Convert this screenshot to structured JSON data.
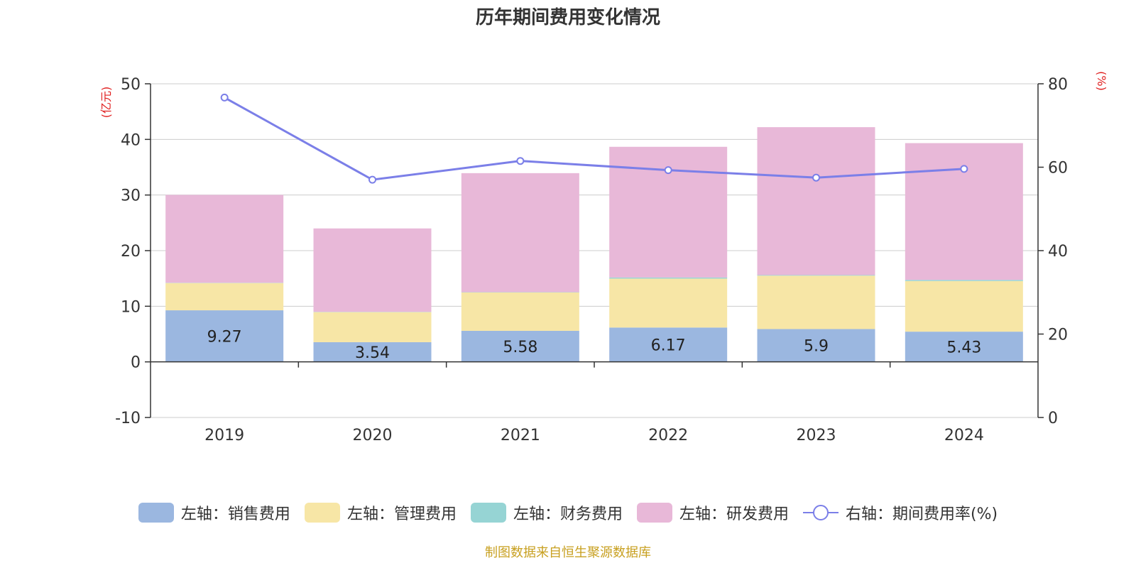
{
  "title": "历年期间费用变化情况",
  "source": "制图数据来自恒生聚源数据库",
  "chart_data": {
    "type": "bar",
    "title": "历年期间费用变化情况",
    "categories": [
      "2019",
      "2020",
      "2021",
      "2022",
      "2023",
      "2024"
    ],
    "left_axis": {
      "unit": "(亿元)",
      "ylim": [
        -10,
        50
      ],
      "ticks": [
        50,
        40,
        30,
        20,
        10,
        0,
        -10
      ]
    },
    "right_axis": {
      "unit": "(%)",
      "ylim": [
        0,
        80
      ],
      "ticks": [
        80,
        60,
        40,
        20,
        0
      ]
    },
    "series": [
      {
        "name": "左轴：销售费用",
        "axis": "left",
        "type": "bar",
        "color": "#9bb7e0",
        "values": [
          9.27,
          3.54,
          5.58,
          6.17,
          5.9,
          5.43
        ],
        "labels": [
          "9.27",
          "3.54",
          "5.58",
          "6.17",
          "5.9",
          "5.43"
        ]
      },
      {
        "name": "左轴：管理费用",
        "axis": "left",
        "type": "bar",
        "color": "#f7e6a6",
        "values": [
          4.9,
          5.4,
          6.9,
          8.8,
          9.6,
          9.1
        ]
      },
      {
        "name": "左轴：财务费用",
        "axis": "left",
        "type": "bar",
        "color": "#96d4d4",
        "values": [
          0.05,
          0.05,
          0.05,
          0.2,
          0.1,
          0.2
        ]
      },
      {
        "name": "左轴：研发费用",
        "axis": "left",
        "type": "bar",
        "color": "#e8b8d8",
        "values": [
          15.8,
          15.0,
          21.4,
          23.5,
          26.6,
          24.6
        ]
      },
      {
        "name": "右轴：期间费用率(%)",
        "axis": "right",
        "type": "line",
        "color": "#7b7fe8",
        "values": [
          76.7,
          57.0,
          61.5,
          59.3,
          57.5,
          59.6
        ]
      }
    ],
    "grid": true,
    "legend_position": "bottom"
  }
}
